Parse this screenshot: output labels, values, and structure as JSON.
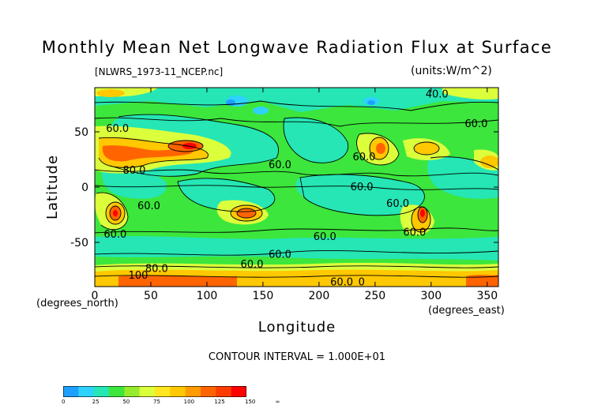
{
  "chart_data": {
    "type": "heatmap",
    "title": "Monthly Mean Net Longwave Radiation Flux at Surface",
    "file_label": "[NLWRS_1973-11_NCEP.nc]",
    "units_label": "(units:W/m^2)",
    "xlabel": "Longitude",
    "ylabel": "Latitude",
    "x_unit_label": "(degrees_east)",
    "y_unit_label": "(degrees_north)",
    "xlim": [
      0,
      360
    ],
    "ylim": [
      -90,
      90
    ],
    "x_ticks": [
      0,
      50,
      100,
      150,
      200,
      250,
      300,
      350
    ],
    "y_ticks": [
      50,
      0,
      -50
    ],
    "contour_interval": "CONTOUR INTERVAL = 1.000E+01",
    "contour_labels": [
      {
        "text": "40.0",
        "x": 295,
        "y": 84
      },
      {
        "text": "60.0",
        "x": 10,
        "y": 53
      },
      {
        "text": "60.0",
        "x": 330,
        "y": 57
      },
      {
        "text": "80.0",
        "x": 25,
        "y": 15
      },
      {
        "text": "60.0",
        "x": 155,
        "y": 20
      },
      {
        "text": "60.0",
        "x": 230,
        "y": 27
      },
      {
        "text": "60.0",
        "x": 228,
        "y": 0
      },
      {
        "text": "60.0",
        "x": 38,
        "y": -17
      },
      {
        "text": "60.0",
        "x": 260,
        "y": -15
      },
      {
        "text": "60.0",
        "x": 8,
        "y": -43
      },
      {
        "text": "60.0",
        "x": 195,
        "y": -45
      },
      {
        "text": "60.0",
        "x": 275,
        "y": -41
      },
      {
        "text": "60.0",
        "x": 155,
        "y": -61
      },
      {
        "text": "60.0",
        "x": 130,
        "y": -70
      },
      {
        "text": "80.0",
        "x": 45,
        "y": -74
      },
      {
        "text": "100",
        "x": 30,
        "y": -80
      },
      {
        "text": "60.0",
        "x": 210,
        "y": -86
      },
      {
        "text": "0",
        "x": 235,
        "y": -86
      }
    ],
    "colorbar": {
      "colors": [
        "#1ea0ff",
        "#2dd2ff",
        "#25e6b4",
        "#3ce63c",
        "#96eb2d",
        "#dcff3c",
        "#ffe61e",
        "#ffc800",
        "#ff9b00",
        "#ff6400",
        "#ff3c00",
        "#ff0000"
      ],
      "labels": [
        "0",
        "25",
        "50",
        "75",
        "100",
        "125",
        "150",
        "∞"
      ]
    },
    "bands": [
      {
        "label": "0-25",
        "color": "#1ea0ff"
      },
      {
        "label": "25-50",
        "color": "#2dd2ff"
      },
      {
        "label": "50-75",
        "color": "#3ce63c"
      },
      {
        "label": "75-100",
        "color": "#dcff3c"
      },
      {
        "label": "100-125",
        "color": "#ffc800"
      },
      {
        "label": "125-150",
        "color": "#ff6400"
      },
      {
        "label": "150+",
        "color": "#ff0000"
      }
    ]
  }
}
